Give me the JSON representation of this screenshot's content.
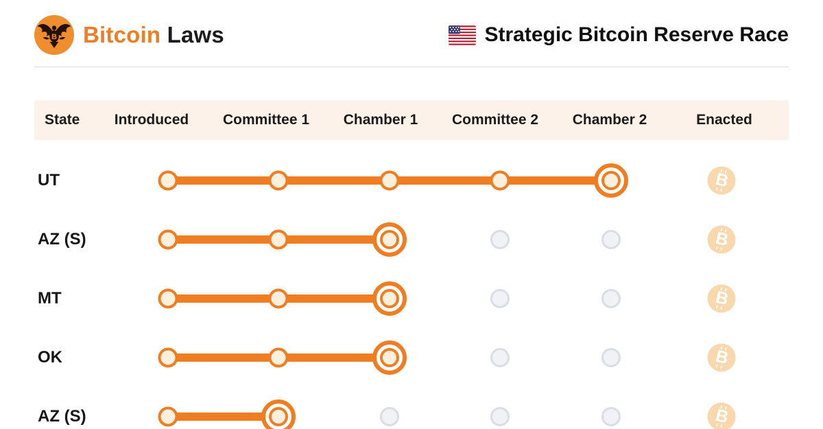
{
  "header": {
    "brand_accent": "Bitcoin",
    "brand_rest": "Laws",
    "title": "Strategic Bitcoin Reserve Race"
  },
  "icons": {
    "logo": "eagle-seal-icon",
    "flag": "us-flag-icon",
    "enacted": "bitcoin-icon",
    "bitcoin_glyph": "B"
  },
  "colors": {
    "accent_orange": "#EF7D22",
    "logo_orange": "#EF8E2E",
    "dot_fill": "#FBEFDD",
    "table_header_bg": "#FDF2E9",
    "future_dot_fill": "#F0F2F6",
    "future_dot_border": "#D9DDE4",
    "enacted_badge_bg": "#F8D8AC",
    "divider": "#DCDCDC",
    "text_dark": "#151515"
  },
  "table": {
    "columns": [
      "State",
      "Introduced",
      "Committee 1",
      "Chamber 1",
      "Committee 2",
      "Chamber 2",
      "Enacted"
    ],
    "stages": [
      "Introduced",
      "Committee 1",
      "Chamber 1",
      "Committee 2",
      "Chamber 2"
    ],
    "rows": [
      {
        "state": "UT",
        "completed_stages": 5,
        "current_stage": "Chamber 2",
        "enacted": false
      },
      {
        "state": "AZ (S)",
        "completed_stages": 3,
        "current_stage": "Chamber 1",
        "enacted": false
      },
      {
        "state": "MT",
        "completed_stages": 3,
        "current_stage": "Chamber 1",
        "enacted": false
      },
      {
        "state": "OK",
        "completed_stages": 3,
        "current_stage": "Chamber 1",
        "enacted": false
      },
      {
        "state": "AZ (S)",
        "completed_stages": 2,
        "current_stage": "Committee 1",
        "enacted": false
      }
    ]
  }
}
